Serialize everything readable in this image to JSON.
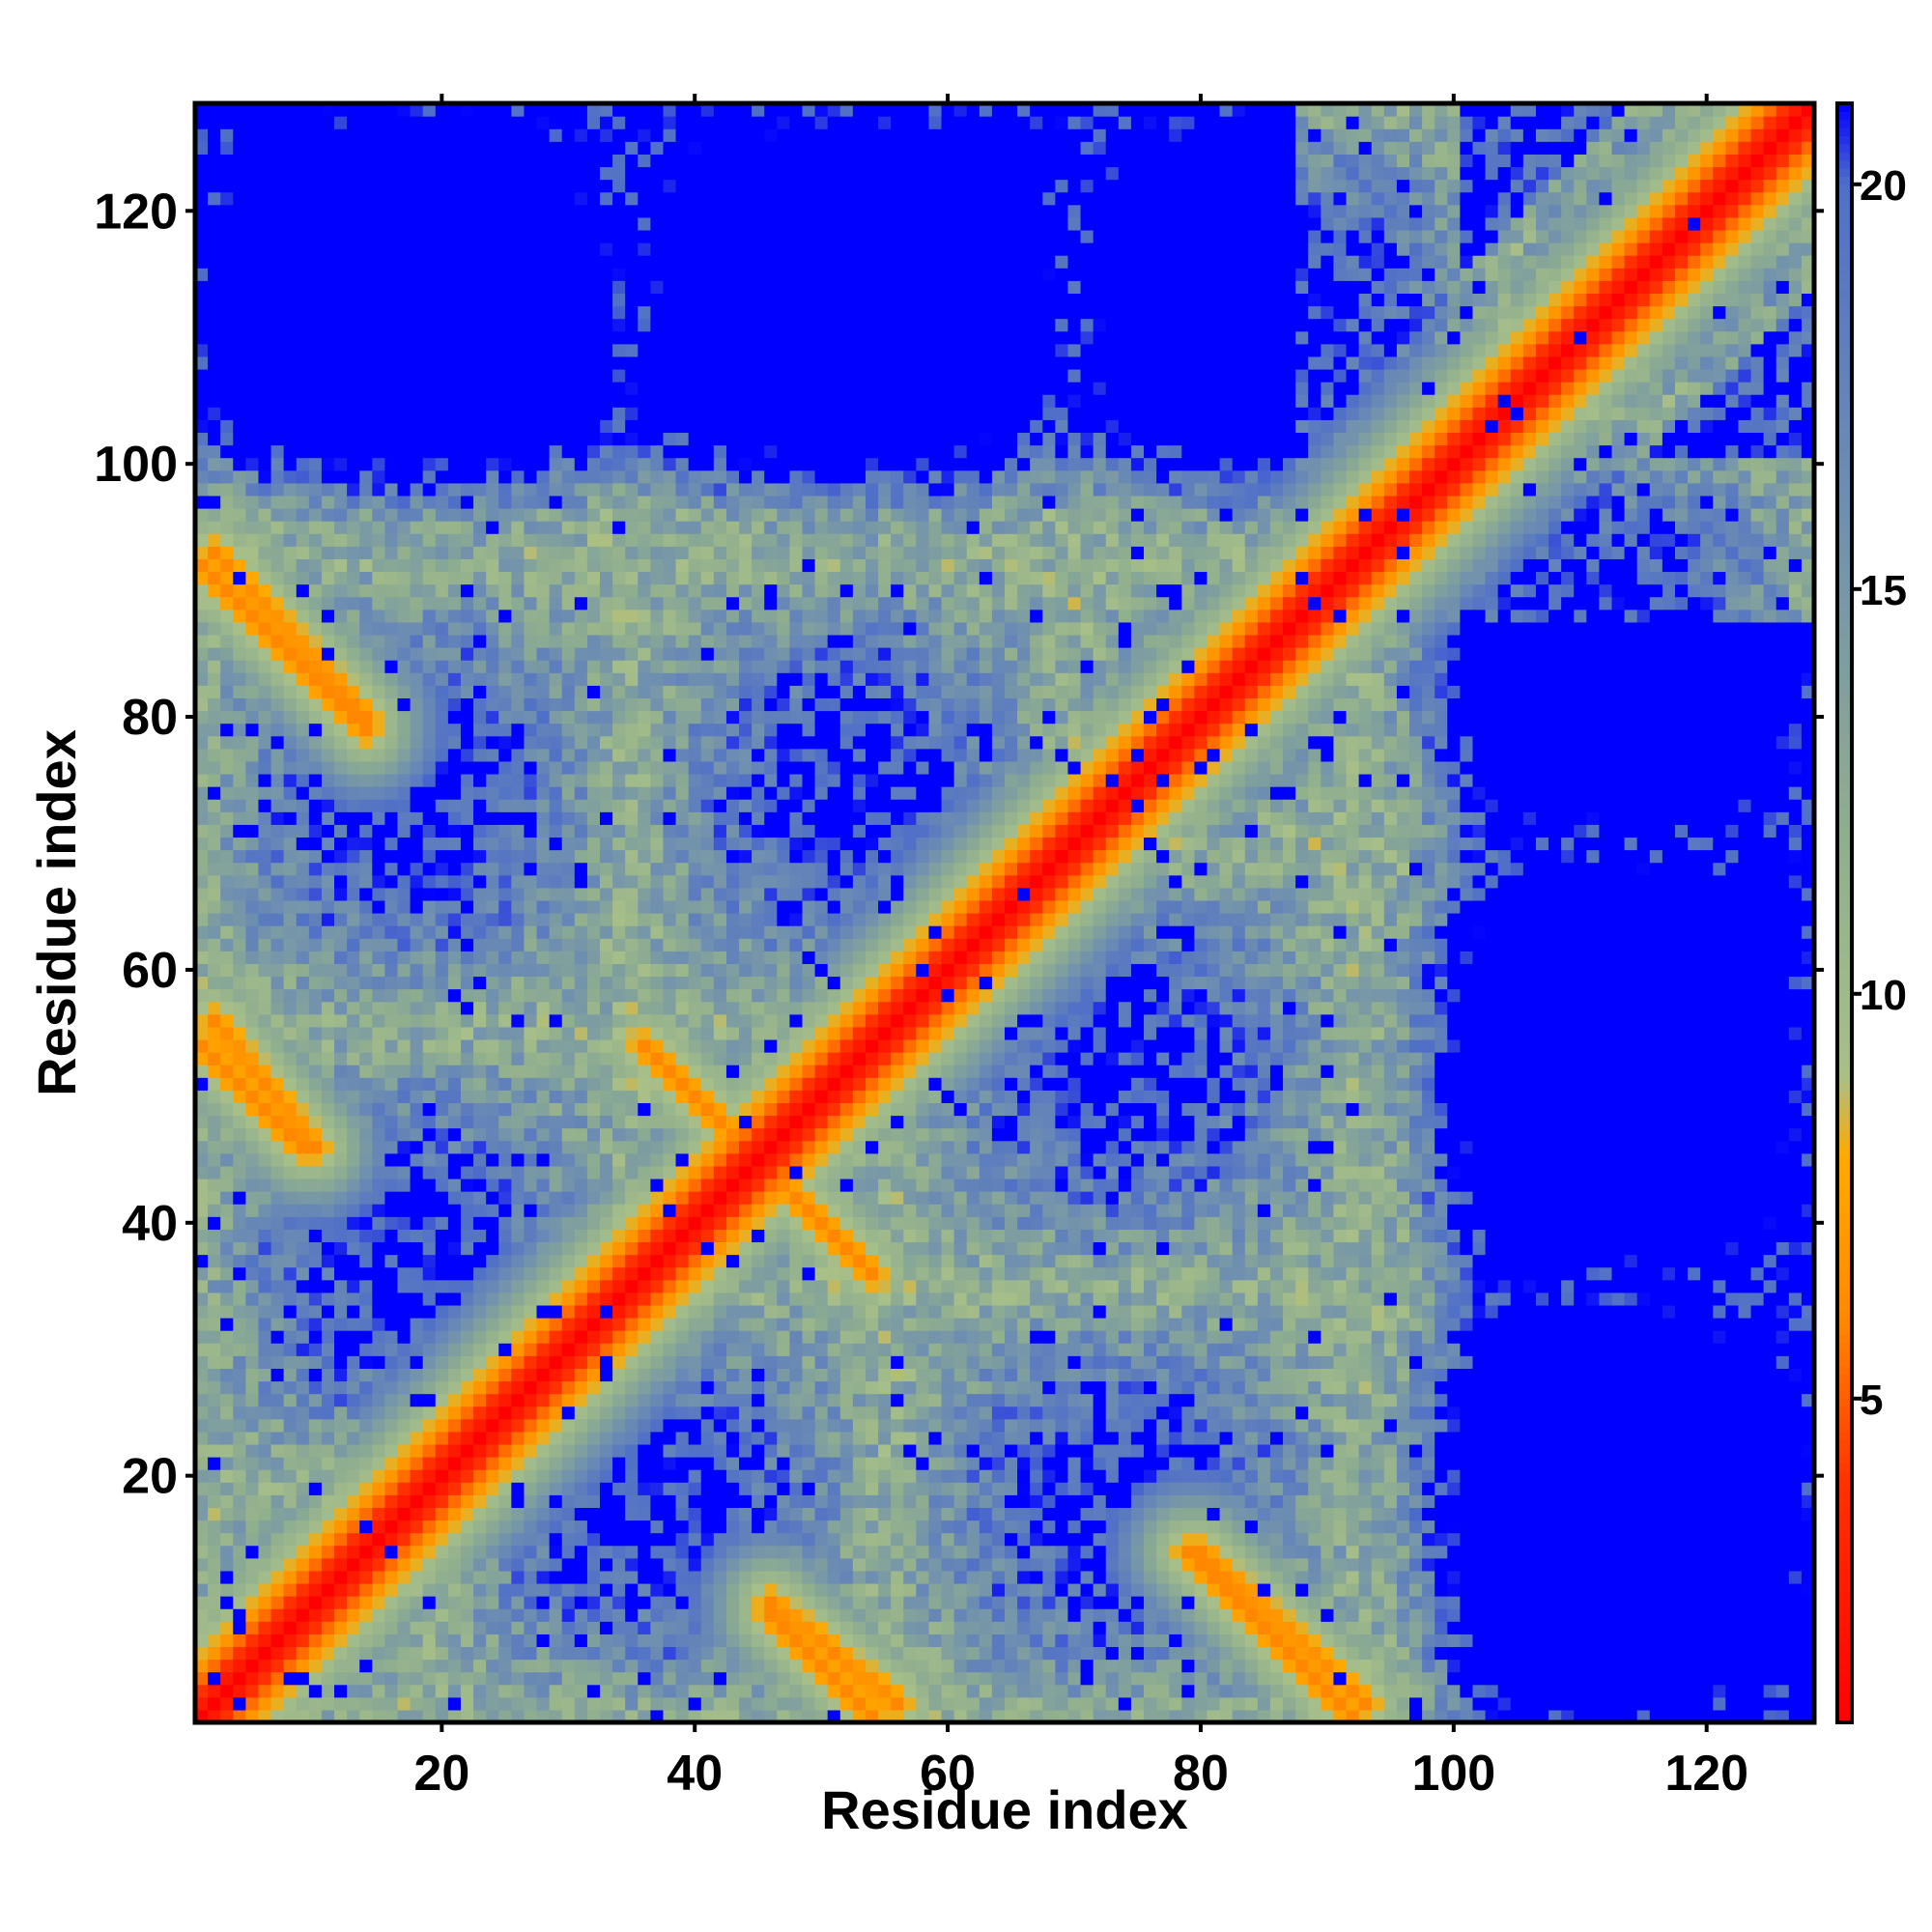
{
  "chart_data": {
    "type": "heatmap",
    "title": "",
    "xlabel": "Residue index",
    "ylabel": "Residue index",
    "xlim": [
      1,
      128
    ],
    "ylim": [
      1,
      128
    ],
    "x_ticks": [
      20,
      40,
      60,
      80,
      100,
      120
    ],
    "y_ticks": [
      20,
      40,
      60,
      80,
      100,
      120
    ],
    "x_tick_labels": [
      "20",
      "40",
      "60",
      "80",
      "100",
      "120"
    ],
    "y_tick_labels": [
      "20",
      "40",
      "60",
      "80",
      "100",
      "120"
    ],
    "n_residues": 128,
    "description_of_values": "pairwise residue distance map; symmetric about the diagonal",
    "colorbar": {
      "range": [
        1,
        21
      ],
      "ticks": [
        5,
        10,
        15,
        20
      ],
      "tick_labels": [
        "5",
        "10",
        "15",
        "20"
      ],
      "colors": [
        {
          "value": 1,
          "color": "#ff0000"
        },
        {
          "value": 4,
          "color": "#ff3300"
        },
        {
          "value": 6,
          "color": "#ff8800"
        },
        {
          "value": 8,
          "color": "#ffaa00"
        },
        {
          "value": 9,
          "color": "#a8bf88"
        },
        {
          "value": 12,
          "color": "#8fae8f"
        },
        {
          "value": 16,
          "color": "#6f8fb0"
        },
        {
          "value": 20,
          "color": "#5070c8"
        },
        {
          "value": 21,
          "color": "#0000ff"
        }
      ],
      "saturated_color": "#0000ff"
    },
    "contact_features": [
      {
        "kind": "diagonal",
        "from": 1,
        "to": 128,
        "value": 1
      },
      {
        "kind": "anti_diagonal",
        "x_range": [
          2,
          14
        ],
        "y_range": [
          93,
          80
        ],
        "value": 6
      },
      {
        "kind": "anti_diagonal",
        "x_range": [
          2,
          10
        ],
        "y_range": [
          56,
          46
        ],
        "value": 6
      },
      {
        "kind": "anti_diagonal",
        "x_range": [
          36,
          54
        ],
        "y_range": [
          54,
          36
        ],
        "value": 6
      },
      {
        "kind": "anti_diagonal",
        "x_range": [
          46,
          54
        ],
        "y_range": [
          9,
          1
        ],
        "value": 6
      },
      {
        "kind": "anti_diagonal",
        "x_range": [
          79,
          92
        ],
        "y_range": [
          14,
          1
        ],
        "value": 6
      },
      {
        "kind": "parallel_band",
        "offset": 30,
        "from": 1,
        "to": 40,
        "value": 14
      },
      {
        "kind": "parallel_band",
        "offset": 10,
        "from": 1,
        "to": 128,
        "value": 12
      }
    ]
  }
}
